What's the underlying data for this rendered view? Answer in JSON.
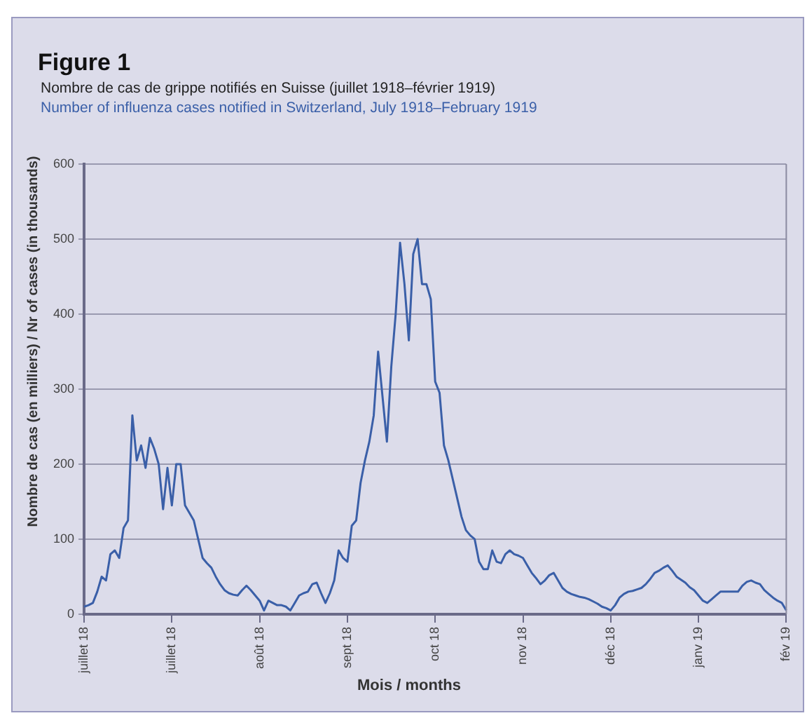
{
  "chart_data": {
    "type": "line",
    "title": "Figure 1",
    "subtitle": [
      "Nombre de cas de grippe notifiés en Suisse (juillet 1918–février 1919)",
      "Number of influenza cases notified in Switzerland, July 1918–February 1919"
    ],
    "xlabel": "Mois / months",
    "ylabel": "Nombre de cas (en milliers) / Nr of cases (in thousands)",
    "categories": [
      "juillet 18",
      null,
      null,
      null,
      null,
      null,
      null,
      null,
      null,
      null,
      null,
      null,
      null,
      null,
      null,
      null,
      null,
      null,
      null,
      null,
      "juillet 18",
      null,
      null,
      null,
      null,
      null,
      null,
      null,
      null,
      null,
      null,
      null,
      null,
      null,
      null,
      null,
      null,
      null,
      null,
      null,
      "août 18",
      null,
      null,
      null,
      null,
      null,
      null,
      null,
      null,
      null,
      null,
      null,
      null,
      null,
      null,
      null,
      null,
      null,
      null,
      null,
      "sept 18",
      null,
      null,
      null,
      null,
      null,
      null,
      null,
      null,
      null,
      null,
      null,
      null,
      null,
      null,
      null,
      null,
      null,
      null,
      null,
      "oct 18",
      null,
      null,
      null,
      null,
      null,
      null,
      null,
      null,
      null,
      null,
      null,
      null,
      null,
      null,
      null,
      null,
      null,
      null,
      null,
      "nov 18",
      null,
      null,
      null,
      null,
      null,
      null,
      null,
      null,
      null,
      null,
      null,
      null,
      null,
      null,
      null,
      null,
      null,
      null,
      null,
      "déc 18",
      null,
      null,
      null,
      null,
      null,
      null,
      null,
      null,
      null,
      null,
      null,
      null,
      null,
      null,
      null,
      null,
      null,
      null,
      null,
      "janv 19",
      null,
      null,
      null,
      null,
      null,
      null,
      null,
      null,
      null,
      null,
      null,
      null,
      null,
      null,
      null,
      null,
      null,
      null,
      null,
      "fév 19"
    ],
    "ylim": [
      0,
      600
    ],
    "yticks": [
      0,
      100,
      200,
      300,
      400,
      500,
      600
    ],
    "grid": "y",
    "marker": "none",
    "line_style": "solid",
    "series": [
      {
        "color": "#3a5fa8",
        "values": [
          10,
          12,
          15,
          30,
          50,
          45,
          80,
          85,
          75,
          115,
          125,
          265,
          205,
          225,
          195,
          235,
          220,
          200,
          140,
          195,
          145,
          200,
          200,
          145,
          135,
          125,
          100,
          75,
          68,
          62,
          50,
          40,
          32,
          28,
          26,
          25,
          32,
          38,
          32,
          25,
          18,
          5,
          18,
          15,
          12,
          12,
          10,
          5,
          15,
          25,
          28,
          30,
          40,
          42,
          28,
          15,
          28,
          45,
          85,
          75,
          70,
          118,
          125,
          175,
          205,
          230,
          265,
          350,
          290,
          230,
          330,
          400,
          495,
          440,
          365,
          480,
          500,
          440,
          440,
          420,
          310,
          295,
          225,
          205,
          180,
          155,
          130,
          112,
          105,
          100,
          70,
          60,
          60,
          85,
          70,
          68,
          80,
          85,
          80,
          78,
          75,
          65,
          55,
          48,
          40,
          45,
          52,
          55,
          45,
          35,
          30,
          27,
          25,
          23,
          22,
          20,
          17,
          14,
          10,
          8,
          5,
          12,
          22,
          27,
          30,
          31,
          33,
          35,
          40,
          47,
          55,
          58,
          62,
          65,
          58,
          50,
          46,
          42,
          36,
          32,
          25,
          18,
          15,
          20,
          25,
          30,
          30,
          30,
          30,
          30,
          38,
          43,
          45,
          42,
          40,
          32,
          27,
          22,
          18,
          15,
          5
        ]
      }
    ]
  }
}
